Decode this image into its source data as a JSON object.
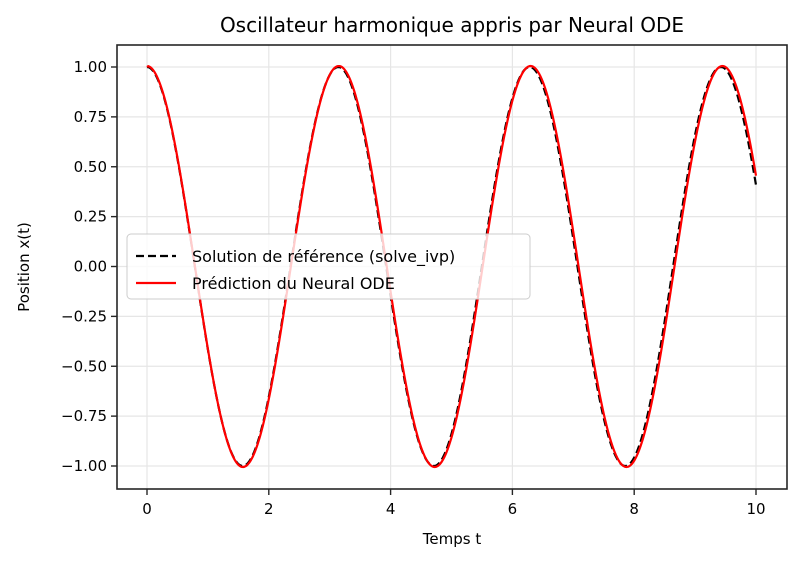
{
  "chart_data": {
    "type": "line",
    "title": "Oscillateur harmonique appris par Neural ODE",
    "xlabel": "Temps t",
    "ylabel": "Position x(t)",
    "xlim": [
      -0.5,
      10.5
    ],
    "ylim": [
      -1.11,
      1.11
    ],
    "xticks": [
      0,
      2,
      4,
      6,
      8,
      10
    ],
    "xtick_labels": [
      "0",
      "2",
      "4",
      "6",
      "8",
      "10"
    ],
    "yticks": [
      1.0,
      0.75,
      0.5,
      0.25,
      0.0,
      -0.25,
      -0.5,
      -0.75,
      -1.0
    ],
    "ytick_labels": [
      "1.00",
      "0.75",
      "0.50",
      "0.25",
      "0.00",
      "−0.25",
      "−0.50",
      "−0.75",
      "−1.00"
    ],
    "grid": true,
    "legend_position": "center left",
    "series": [
      {
        "name": "Solution de référence (solve_ivp)",
        "color": "#000000",
        "style": "dashed",
        "function": "cos(2t)",
        "x": [
          0,
          0.5,
          1.0,
          1.5708,
          2.0,
          2.5,
          3.1416,
          3.5,
          4.0,
          4.7124,
          5.0,
          5.5,
          6.2832,
          6.5,
          7.0,
          7.854,
          8.0,
          8.5,
          9.4248,
          9.5,
          10.0
        ],
        "values": [
          1.0,
          0.54,
          -0.416,
          -1.0,
          -0.654,
          0.284,
          1.0,
          0.754,
          -0.146,
          -1.0,
          -0.839,
          0.004,
          1.0,
          0.907,
          0.137,
          -1.0,
          -0.958,
          -0.275,
          1.0,
          0.989,
          0.408
        ]
      },
      {
        "name": "Prédiction du Neural ODE",
        "color": "#ff0000",
        "style": "solid",
        "function": "≈1.005·cos(1.995t)",
        "x": [
          0,
          0.5,
          1.0,
          1.575,
          2.0,
          2.5,
          3.149,
          3.5,
          4.0,
          4.724,
          5.0,
          5.5,
          6.298,
          6.5,
          7.0,
          7.873,
          8.0,
          8.5,
          9.447,
          9.5,
          10.0
        ],
        "values": [
          1.0,
          0.545,
          -0.41,
          -1.005,
          -0.66,
          0.27,
          1.005,
          0.765,
          -0.125,
          -1.005,
          -0.855,
          -0.02,
          1.005,
          0.92,
          0.165,
          -1.005,
          -0.98,
          -0.31,
          1.005,
          1.0,
          0.43
        ]
      }
    ]
  },
  "legend": {
    "items": [
      {
        "label": "Solution de référence (solve_ivp)",
        "color": "#000000",
        "style": "dashed"
      },
      {
        "label": "Prédiction du Neural ODE",
        "color": "#ff0000",
        "style": "solid"
      }
    ]
  },
  "colors": {
    "reference": "#000000",
    "prediction": "#ff0000",
    "grid": "#e6e6e6",
    "frame": "#262626"
  }
}
